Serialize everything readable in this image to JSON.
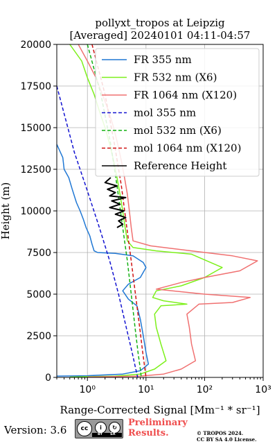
{
  "chart_data": {
    "type": "line",
    "title": "pollyxt_tropos at Leipzig",
    "subtitle": "[Averaged] 20240101 04:11-04:57",
    "xlabel": "Range-Corrected Signal [Mm⁻¹ * sr⁻¹]",
    "ylabel": "Height (m)",
    "xscale": "log",
    "xlim": [
      0.3,
      1000
    ],
    "ylim": [
      0,
      20000
    ],
    "xticks": [
      1,
      10,
      100,
      1000
    ],
    "xtick_labels": [
      "10⁰",
      "10¹",
      "10²",
      "10³"
    ],
    "yticks": [
      0,
      2500,
      5000,
      7500,
      10000,
      12500,
      15000,
      17500,
      20000
    ],
    "ytick_labels": [
      "0",
      "2500",
      "5000",
      "7500",
      "10000",
      "12500",
      "15000",
      "17500",
      "20000"
    ],
    "grid": true,
    "legend_position": "top-right",
    "series": [
      {
        "name": "FR 355 nm",
        "color": "#1f77d4",
        "style": "solid",
        "points": [
          [
            0.3,
            14000
          ],
          [
            0.38,
            13200
          ],
          [
            0.4,
            12500
          ],
          [
            0.48,
            12000
          ],
          [
            0.55,
            11300
          ],
          [
            0.65,
            10500
          ],
          [
            0.75,
            10000
          ],
          [
            0.85,
            9500
          ],
          [
            0.95,
            9000
          ],
          [
            1.1,
            8500
          ],
          [
            1.2,
            8000
          ],
          [
            1.3,
            7600
          ],
          [
            1.5,
            7500
          ],
          [
            3,
            7450
          ],
          [
            6,
            7300
          ],
          [
            9,
            6900
          ],
          [
            10,
            6600
          ],
          [
            8,
            6000
          ],
          [
            5,
            5600
          ],
          [
            4,
            5200
          ],
          [
            5,
            4700
          ],
          [
            7,
            4300
          ],
          [
            8,
            3500
          ],
          [
            9,
            2500
          ],
          [
            10,
            1500
          ],
          [
            11,
            800
          ],
          [
            8,
            400
          ],
          [
            4,
            200
          ],
          [
            1,
            100
          ],
          [
            0.3,
            80
          ]
        ]
      },
      {
        "name": "FR 532 nm",
        "suffix": "(X6)",
        "color": "#7cf01a",
        "style": "solid",
        "points": [
          [
            0.5,
            20000
          ],
          [
            0.8,
            19000
          ],
          [
            1.0,
            18000
          ],
          [
            1.3,
            17000
          ],
          [
            1.6,
            16000
          ],
          [
            2.0,
            15000
          ],
          [
            2.4,
            14000
          ],
          [
            2.8,
            13000
          ],
          [
            3.2,
            12000
          ],
          [
            3.6,
            11000
          ],
          [
            4.0,
            10000
          ],
          [
            4.4,
            9000
          ],
          [
            4.8,
            8200
          ],
          [
            6,
            7800
          ],
          [
            15,
            7600
          ],
          [
            60,
            7400
          ],
          [
            200,
            6600
          ],
          [
            100,
            6000
          ],
          [
            40,
            5500
          ],
          [
            15,
            5200
          ],
          [
            13,
            4800
          ],
          [
            20,
            4600
          ],
          [
            50,
            4400
          ],
          [
            18,
            4300
          ],
          [
            14,
            3800
          ],
          [
            15,
            3000
          ],
          [
            18,
            2000
          ],
          [
            22,
            1000
          ],
          [
            14,
            500
          ],
          [
            8,
            200
          ],
          [
            3,
            80
          ],
          [
            0.5,
            20
          ]
        ]
      },
      {
        "name": "FR 1064 nm",
        "suffix": "(X120)",
        "color": "#f07070",
        "style": "solid",
        "points": [
          [
            0.7,
            20000
          ],
          [
            1.0,
            19000
          ],
          [
            1.4,
            18000
          ],
          [
            1.8,
            17000
          ],
          [
            2.3,
            16000
          ],
          [
            2.8,
            15000
          ],
          [
            3.3,
            14000
          ],
          [
            3.8,
            13000
          ],
          [
            4.3,
            12000
          ],
          [
            4.8,
            11000
          ],
          [
            5.2,
            10000
          ],
          [
            5.6,
            9000
          ],
          [
            6,
            8200
          ],
          [
            12,
            7900
          ],
          [
            60,
            7600
          ],
          [
            300,
            7300
          ],
          [
            800,
            7000
          ],
          [
            400,
            6400
          ],
          [
            100,
            6000
          ],
          [
            40,
            5700
          ],
          [
            15,
            5300
          ],
          [
            100,
            5000
          ],
          [
            600,
            4800
          ],
          [
            300,
            4500
          ],
          [
            80,
            4400
          ],
          [
            50,
            3800
          ],
          [
            55,
            3000
          ],
          [
            60,
            2000
          ],
          [
            70,
            1000
          ],
          [
            40,
            500
          ],
          [
            20,
            200
          ],
          [
            8,
            80
          ],
          [
            1,
            20
          ]
        ]
      },
      {
        "name": "mol 355 nm",
        "color": "#1010d0",
        "style": "dashed",
        "points": [
          [
            0.3,
            17500
          ],
          [
            0.6,
            13500
          ],
          [
            1.0,
            11200
          ],
          [
            1.6,
            9000
          ],
          [
            2.4,
            7000
          ],
          [
            3.4,
            5000
          ],
          [
            4.6,
            3000
          ],
          [
            5.8,
            1500
          ],
          [
            6.5,
            700
          ],
          [
            7.2,
            0
          ]
        ]
      },
      {
        "name": "mol 532 nm",
        "suffix": "(X6)",
        "color": "#10b010",
        "style": "dashed",
        "points": [
          [
            1.0,
            20000
          ],
          [
            1.7,
            17000
          ],
          [
            2.5,
            14000
          ],
          [
            3.2,
            11500
          ],
          [
            4.0,
            9000
          ],
          [
            4.8,
            7000
          ],
          [
            5.6,
            5000
          ],
          [
            6.5,
            3000
          ],
          [
            7.3,
            1500
          ],
          [
            8.0,
            500
          ],
          [
            8.3,
            0
          ]
        ]
      },
      {
        "name": "mol 1064 nm",
        "suffix": "(X120)",
        "color": "#d01010",
        "style": "dashed",
        "points": [
          [
            1.2,
            20000
          ],
          [
            2.0,
            17000
          ],
          [
            2.9,
            14000
          ],
          [
            3.8,
            11500
          ],
          [
            4.7,
            9000
          ],
          [
            5.6,
            7000
          ],
          [
            6.6,
            5000
          ],
          [
            7.8,
            3000
          ],
          [
            8.8,
            1500
          ],
          [
            9.6,
            500
          ],
          [
            10,
            0
          ]
        ]
      },
      {
        "name": "Reference Height",
        "color": "#000000",
        "style": "solid",
        "points": [
          [
            2.5,
            12000
          ],
          [
            2.0,
            11700
          ],
          [
            3.2,
            11500
          ],
          [
            2.2,
            11300
          ],
          [
            3.0,
            11100
          ],
          [
            2.4,
            10900
          ],
          [
            4.5,
            10800
          ],
          [
            2.6,
            10600
          ],
          [
            3.6,
            10400
          ],
          [
            2.4,
            10200
          ],
          [
            4.2,
            10000
          ],
          [
            3.0,
            9800
          ],
          [
            4.5,
            9600
          ],
          [
            3.4,
            9400
          ],
          [
            4.0,
            9200
          ],
          [
            3.2,
            9000
          ]
        ]
      }
    ]
  },
  "footer": {
    "version": "Version: 3.6",
    "cc_logo": "cc",
    "cc_by": "BY",
    "cc_sa": "SA",
    "preliminary_line1": "Preliminary",
    "preliminary_line2": "Results.",
    "copyright_line1": "© TROPOS 2024.",
    "copyright_line2": "CC BY SA 4.0 License."
  }
}
